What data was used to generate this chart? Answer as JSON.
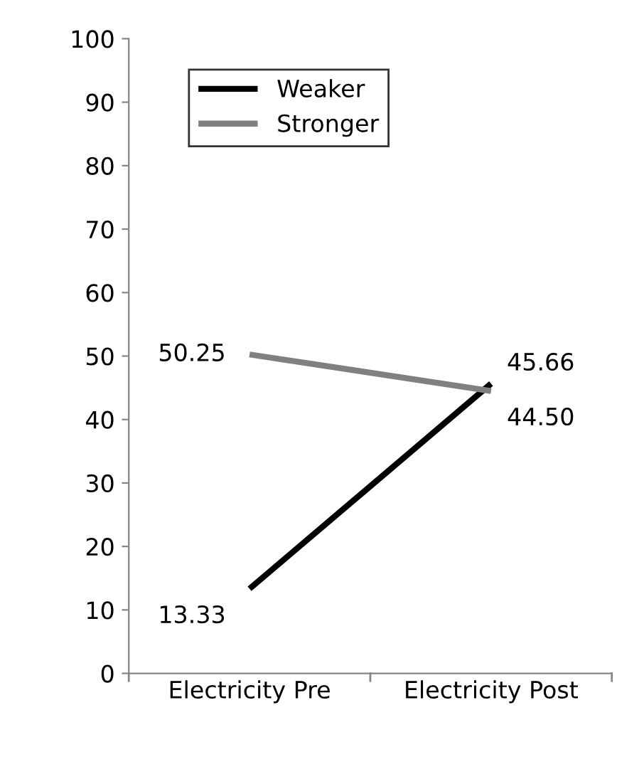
{
  "chart_data": {
    "type": "line",
    "categories": [
      "Electricity Pre",
      "Electricity Post"
    ],
    "series": [
      {
        "name": "Weaker",
        "color": "#000000",
        "values": [
          13.33,
          45.66
        ],
        "value_labels": [
          "13.33",
          "45.66"
        ]
      },
      {
        "name": "Stronger",
        "color": "#808080",
        "values": [
          50.25,
          44.5
        ],
        "value_labels": [
          "50.25",
          "44.50"
        ]
      }
    ],
    "ylim": [
      0,
      100
    ],
    "yticks": [
      0,
      10,
      20,
      30,
      40,
      50,
      60,
      70,
      80,
      90,
      100
    ],
    "grid": false,
    "legend": "top left",
    "marker": "none",
    "line_style": "solid"
  }
}
